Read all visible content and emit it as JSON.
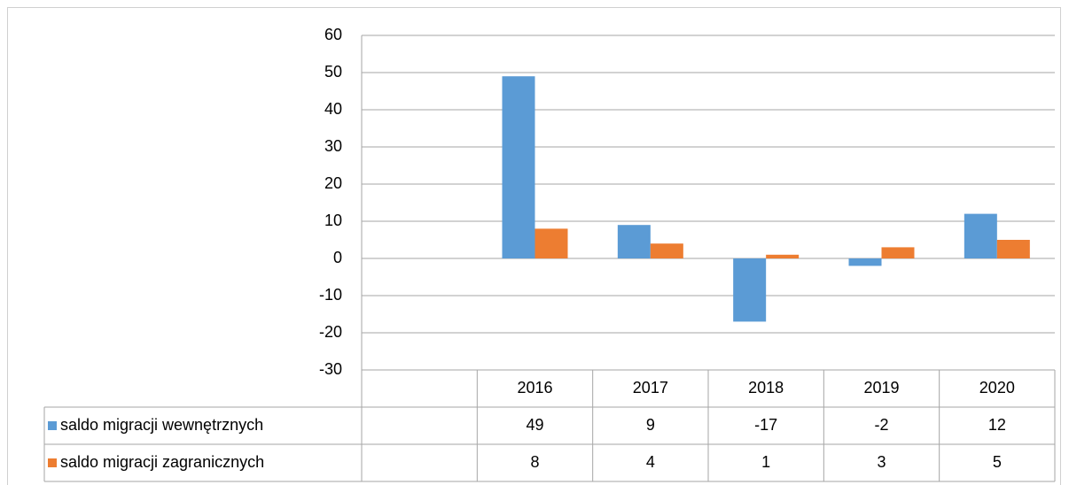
{
  "chart_data": {
    "type": "bar",
    "categories": [
      null,
      "2016",
      "2017",
      "2018",
      "2019",
      "2020"
    ],
    "series": [
      {
        "name": "saldo migracji wewnętrznych",
        "color": "#5b9bd5",
        "values": [
          null,
          49,
          9,
          -17,
          -2,
          12
        ]
      },
      {
        "name": "saldo migracji zagranicznych",
        "color": "#ed7d31",
        "values": [
          null,
          8,
          4,
          1,
          3,
          5
        ]
      }
    ],
    "ylim": [
      -30,
      60
    ],
    "yticks": [
      -30,
      -20,
      -10,
      0,
      10,
      20,
      30,
      40,
      50,
      60
    ],
    "grid": true,
    "data_table": true
  }
}
